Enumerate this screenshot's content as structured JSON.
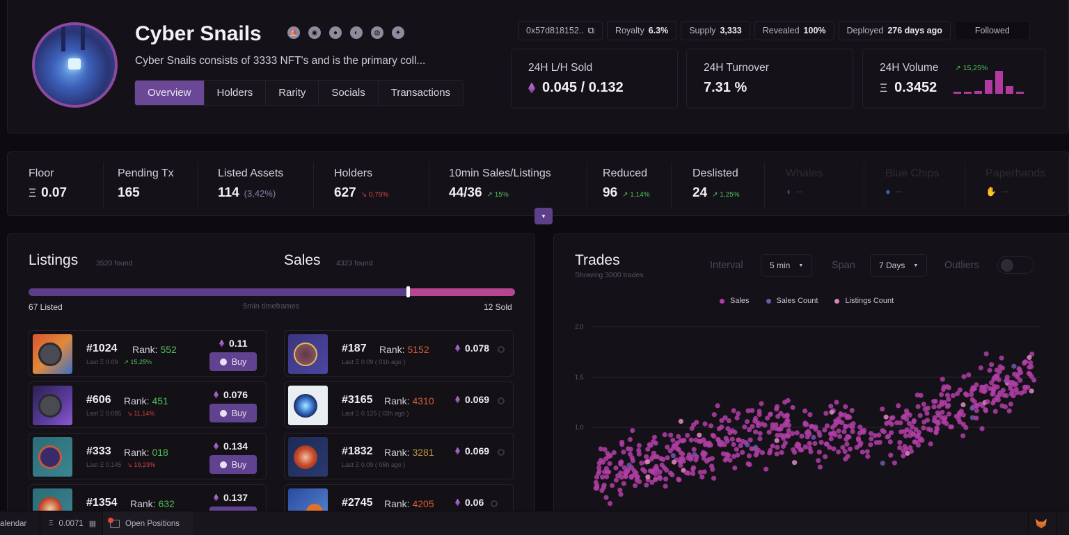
{
  "header": {
    "title": "Cyber Snails",
    "description": "Cyber Snails consists of 3333 NFT's and is the primary coll...",
    "social_icons": [
      "opensea-icon",
      "looksrare-icon",
      "x2y2-icon",
      "blur-icon",
      "website-icon",
      "twitter-icon"
    ],
    "tabs": [
      {
        "label": "Overview",
        "active": true
      },
      {
        "label": "Holders",
        "active": false
      },
      {
        "label": "Rarity",
        "active": false
      },
      {
        "label": "Socials",
        "active": false
      },
      {
        "label": "Transactions",
        "active": false
      }
    ],
    "chips": {
      "contract": "0x57d818152..",
      "royalty_label": "Royalty",
      "royalty_value": "6.3%",
      "supply_label": "Supply",
      "supply_value": "3,333",
      "revealed_label": "Revealed",
      "revealed_value": "100%",
      "deployed_label": "Deployed",
      "deployed_value": "276 days ago",
      "followed_label": "Followed"
    },
    "cards": {
      "lh_sold": {
        "label": "24H L/H Sold",
        "value": "0.045 / 0.132"
      },
      "turnover": {
        "label": "24H Turnover",
        "value": "7.31 %"
      },
      "volume": {
        "label": "24H Volume",
        "value": "0.3452",
        "change": "↗ 15,25%",
        "sparkline": [
          3,
          3,
          4,
          25,
          44,
          12,
          3
        ]
      }
    }
  },
  "stats": {
    "floor": {
      "label": "Floor",
      "value": "0.07"
    },
    "pending": {
      "label": "Pending Tx",
      "value": "165"
    },
    "listed": {
      "label": "Listed Assets",
      "value": "114",
      "sub": "(3,42%)"
    },
    "holders": {
      "label": "Holders",
      "value": "627",
      "change": "↘ 0,79%"
    },
    "sales_listings": {
      "label": "10min Sales/Listings",
      "value": "44/36",
      "change": "↗ 15%"
    },
    "reduced": {
      "label": "Reduced",
      "value": "96",
      "change": "↗ 1,14%"
    },
    "delisted": {
      "label": "Deslisted",
      "value": "24",
      "change": "↗ 1,25%"
    },
    "whales": {
      "label": "Whales",
      "value": "--"
    },
    "blue_chips": {
      "label": "Blue Chips",
      "value": "--"
    },
    "paperhands": {
      "label": "Paperhands",
      "value": "--"
    }
  },
  "listings": {
    "title": "Listings",
    "count": "3520 found",
    "sales_title": "Sales",
    "sales_count": "4323 found",
    "listed_label": "67 Listed",
    "timeframe_label": "5min timeframes",
    "sold_label": "12 Sold",
    "listed_ratio": 0.78,
    "buy_label": "Buy",
    "items": [
      {
        "id": "#1024",
        "rank_label": "Rank:",
        "rank": "552",
        "last": "Last  Ξ 0.09",
        "change": "↗ 15,25%",
        "dir": "up",
        "price": "0.11"
      },
      {
        "id": "#606",
        "rank_label": "Rank:",
        "rank": "451",
        "last": "Last  Ξ 0.085",
        "change": "↘ 11,14%",
        "dir": "down",
        "price": "0.076"
      },
      {
        "id": "#333",
        "rank_label": "Rank:",
        "rank": "018",
        "last": "Last  Ξ 0.145",
        "change": "↘ 19,23%",
        "dir": "down",
        "price": "0.134"
      },
      {
        "id": "#1354",
        "rank_label": "Rank:",
        "rank": "632",
        "last": "",
        "change": "",
        "dir": "up",
        "price": "0.137"
      }
    ],
    "sales": [
      {
        "id": "#187",
        "rank_label": "Rank:",
        "rank": "5152",
        "last": "Last  Ξ 0.09 ( 01h ago )",
        "price": "0.078"
      },
      {
        "id": "#3165",
        "rank_label": "Rank:",
        "rank": "4310",
        "last": "Last  Ξ 0.125 ( 03h ago )",
        "price": "0.069"
      },
      {
        "id": "#1832",
        "rank_label": "Rank:",
        "rank": "3281",
        "last": "Last  Ξ 0.09 ( 05h ago )",
        "price": "0.069"
      },
      {
        "id": "#2745",
        "rank_label": "Rank:",
        "rank": "4205",
        "last": "",
        "price": "0.06"
      }
    ]
  },
  "trades": {
    "title": "Trades",
    "subtitle": "Showing 3000 trades",
    "interval_label": "Interval",
    "interval_value": "5 min",
    "span_label": "Span",
    "span_value": "7 Days",
    "outliers_label": "Outliers",
    "outliers_on": false,
    "legend": [
      {
        "label": "Sales",
        "color": "#b23ea6"
      },
      {
        "label": "Sales Count",
        "color": "#6c5aa8"
      },
      {
        "label": "Listings Count",
        "color": "#d785b8"
      }
    ],
    "y_ticks": [
      "2.0",
      "1.5",
      "1.0"
    ]
  },
  "bottombar": {
    "calendar_label": "alendar",
    "gas_value": "0.0071",
    "positions_label": "Open Positions",
    "positions_badge": "1"
  },
  "colors": {
    "accent": "#6a4895",
    "sales": "#b23ea6",
    "up": "#4fc05a",
    "down": "#d6453e"
  }
}
